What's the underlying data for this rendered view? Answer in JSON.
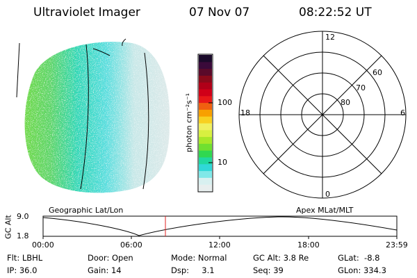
{
  "header": {
    "title": "Ultraviolet Imager",
    "date": "07 Nov 07",
    "time": "08:22:52 UT"
  },
  "colorbar": {
    "unit": "photon cm⁻²s⁻¹",
    "ticks": [
      "100",
      "10"
    ],
    "colors": [
      "#1a0a2a",
      "#3a0a3a",
      "#5a0a2a",
      "#8a0a1a",
      "#b00018",
      "#d00018",
      "#e81818",
      "#f06010",
      "#f8a000",
      "#f8d020",
      "#f0f060",
      "#d8f040",
      "#a8e828",
      "#70e030",
      "#30d850",
      "#20d8a0",
      "#30d8d8",
      "#80e8e8",
      "#d8f0f0",
      "#e8eeee"
    ]
  },
  "polar": {
    "mlt_labels": [
      "12",
      "18",
      "6",
      "0"
    ],
    "lat_labels": [
      "60",
      "70",
      "80"
    ]
  },
  "timeline": {
    "left_title": "Geographic Lat/Lon",
    "right_title": "Apex MLat/MLT",
    "ylabel": "GC Alt",
    "ymax": "9.0",
    "ymin": "1.8",
    "xticks": [
      "00:00",
      "06:00",
      "12:00",
      "18:00",
      "23:59"
    ]
  },
  "info": {
    "row1": [
      "Flt: LBHL",
      "Door: Open",
      "Mode: Normal",
      "GC Alt: 3.8 Re",
      "GLat:  -8.8"
    ],
    "row2": [
      "IP: 36.0",
      "Gain: 14",
      "Dsp:     3.1",
      "Seq: 39",
      "GLon: 334.3"
    ]
  }
}
